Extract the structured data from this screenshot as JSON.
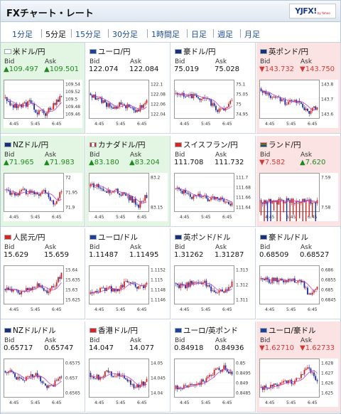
{
  "header": {
    "title": "FXチャート・レート",
    "logo_text": "YJFX!",
    "logo_sub": "by Yahoo"
  },
  "tabs": [
    {
      "label": "1分足"
    },
    {
      "label": "5分足",
      "active": true
    },
    {
      "label": "15分足"
    },
    {
      "label": "30分足"
    },
    {
      "label": "1時間足"
    },
    {
      "label": "日足"
    },
    {
      "label": "週足"
    },
    {
      "label": "月足"
    }
  ],
  "colors": {
    "up_bg": "#e3f6e3",
    "down_bg": "#fbe3e3",
    "up_text": "#1f8a1f",
    "down_text": "#d23a3a",
    "candle_up": "#d42020",
    "candle_down": "#1a2a9e",
    "ma": "#c040c0"
  },
  "labels": {
    "bid": "Bid",
    "ask": "Ask"
  },
  "x_ticks": [
    "4:45",
    "5:45",
    "6:45"
  ],
  "pairs": [
    {
      "name": "米ドル/円",
      "flag": "flag-us-icon",
      "status": "up",
      "bid": "▲109.497",
      "ask": "▲109.501",
      "y_ticks": [
        "109.54",
        "109.52",
        "109.5",
        "109.48",
        "109.46"
      ],
      "trend": [
        0.5,
        0.3,
        0.25,
        0.4,
        0.1,
        0.05,
        0.3,
        0.6
      ]
    },
    {
      "name": "ユーロ/円",
      "flag": "flag-eu-icon",
      "status": "none",
      "bid": "122.074",
      "ask": "122.084",
      "y_ticks": [
        "122.1",
        "122.08",
        "122.06",
        "122.04"
      ],
      "trend": [
        0.6,
        0.5,
        0.3,
        0.25,
        0.35,
        0.2,
        0.15,
        0.5
      ]
    },
    {
      "name": "豪ドル/円",
      "flag": "flag-au-icon",
      "status": "none",
      "bid": "75.019",
      "ask": "75.028",
      "y_ticks": [
        "75.1",
        "75.05",
        "75",
        "74.95"
      ],
      "trend": [
        0.7,
        0.65,
        0.6,
        0.5,
        0.45,
        0.2,
        0.1,
        0.5
      ]
    },
    {
      "name": "英ポンド/円",
      "flag": "flag-uk-icon",
      "status": "down",
      "bid": "▼143.732",
      "ask": "▼143.750",
      "y_ticks": [
        "143.8",
        "143.7",
        "143.6"
      ],
      "trend": [
        0.8,
        0.6,
        0.5,
        0.4,
        0.5,
        0.3,
        0.1,
        0.3
      ]
    },
    {
      "name": "NZドル/円",
      "flag": "flag-nz-icon",
      "status": "up",
      "bid": "▲71.965",
      "ask": "▲71.983",
      "y_ticks": [
        "72",
        "71.95",
        "71.9"
      ],
      "trend": [
        0.5,
        0.4,
        0.55,
        0.5,
        0.45,
        0.5,
        0.1,
        0.6
      ]
    },
    {
      "name": "カナダドル/円",
      "flag": "flag-ca-icon",
      "status": "up",
      "bid": "▲83.180",
      "ask": "▲83.204",
      "y_ticks": [
        "83.2",
        "83.15"
      ],
      "trend": [
        0.7,
        0.65,
        0.5,
        0.55,
        0.45,
        0.3,
        0.1,
        0.4
      ]
    },
    {
      "name": "スイスフラン/円",
      "flag": "flag-ch-icon",
      "status": "none",
      "bid": "111.708",
      "ask": "111.732",
      "y_ticks": [
        "111.7",
        "111.68",
        "111.66",
        "111.64"
      ],
      "trend": [
        0.6,
        0.5,
        0.35,
        0.4,
        0.3,
        0.35,
        0.2,
        0.1
      ]
    },
    {
      "name": "ランド/円",
      "flag": "flag-za-icon",
      "status": "down",
      "bid": "▼7.582",
      "ask": "▲7.620",
      "y_ticks": [
        "7.59",
        "7.58"
      ],
      "trend": [
        0.2,
        0.25,
        0.2,
        0.25,
        0.2,
        0.25,
        0.2,
        0.25
      ],
      "spiky": true
    },
    {
      "name": "人民元/円",
      "flag": "flag-cn-icon",
      "status": "none",
      "bid": "15.629",
      "ask": "15.659",
      "y_ticks": [
        "15.64",
        "15.635",
        "15.63",
        "15.625"
      ],
      "trend": [
        0.4,
        0.3,
        0.25,
        0.35,
        0.5,
        0.3,
        0.45,
        0.8
      ]
    },
    {
      "name": "ユーロ/ドル",
      "flag": "flag-eu-icon",
      "status": "none",
      "bid": "1.11487",
      "ask": "1.11495",
      "y_ticks": [
        "1.1152",
        "1.115",
        "1.1148",
        "1.1146"
      ],
      "trend": [
        0.2,
        0.3,
        0.4,
        0.3,
        0.5,
        0.6,
        0.4,
        0.5
      ]
    },
    {
      "name": "英ポンド/ドル",
      "flag": "flag-uk-icon",
      "status": "none",
      "bid": "1.31262",
      "ask": "1.31287",
      "y_ticks": [
        "1.313",
        "1.312",
        "1.311"
      ],
      "trend": [
        0.5,
        0.45,
        0.55,
        0.6,
        0.5,
        0.2,
        0.3,
        0.55
      ]
    },
    {
      "name": "豪ドル/ドル",
      "flag": "flag-au-icon",
      "status": "none",
      "bid": "0.68509",
      "ask": "0.68527",
      "y_ticks": [
        "0.686",
        "0.6855",
        "0.685",
        "0.6845"
      ],
      "trend": [
        0.7,
        0.6,
        0.65,
        0.55,
        0.65,
        0.6,
        0.2,
        0.4
      ]
    },
    {
      "name": "NZドル/ドル",
      "flag": "flag-nz-icon",
      "status": "none",
      "bid": "0.65717",
      "ask": "0.65747",
      "y_ticks": [
        "0.6575",
        "0.657",
        "0.6565"
      ],
      "trend": [
        0.7,
        0.6,
        0.4,
        0.5,
        0.6,
        0.2,
        0.3,
        0.5
      ]
    },
    {
      "name": "香港ドル/円",
      "flag": "flag-hk-icon",
      "status": "none",
      "bid": "14.047",
      "ask": "14.077",
      "y_ticks": [
        "14.05",
        "14.045",
        "14.04"
      ],
      "trend": [
        0.6,
        0.5,
        0.7,
        0.55,
        0.6,
        0.3,
        0.2,
        0.45
      ]
    },
    {
      "name": "ユーロ/英ポンド",
      "flag": "flag-eu-icon",
      "status": "none",
      "bid": "0.84918",
      "ask": "0.84936",
      "y_ticks": [
        "0.85",
        "0.8495",
        "0.849",
        "0.8485"
      ],
      "trend": [
        0.2,
        0.25,
        0.3,
        0.35,
        0.5,
        0.7,
        0.8,
        0.6
      ]
    },
    {
      "name": "ユーロ/豪ドル",
      "flag": "flag-eu-icon",
      "status": "down",
      "bid": "▼1.62710",
      "ask": "▼1.62733",
      "y_ticks": [
        "1.628",
        "1.627",
        "1.626",
        "1.625"
      ],
      "trend": [
        0.2,
        0.25,
        0.3,
        0.35,
        0.4,
        0.6,
        0.8,
        0.4
      ]
    }
  ]
}
